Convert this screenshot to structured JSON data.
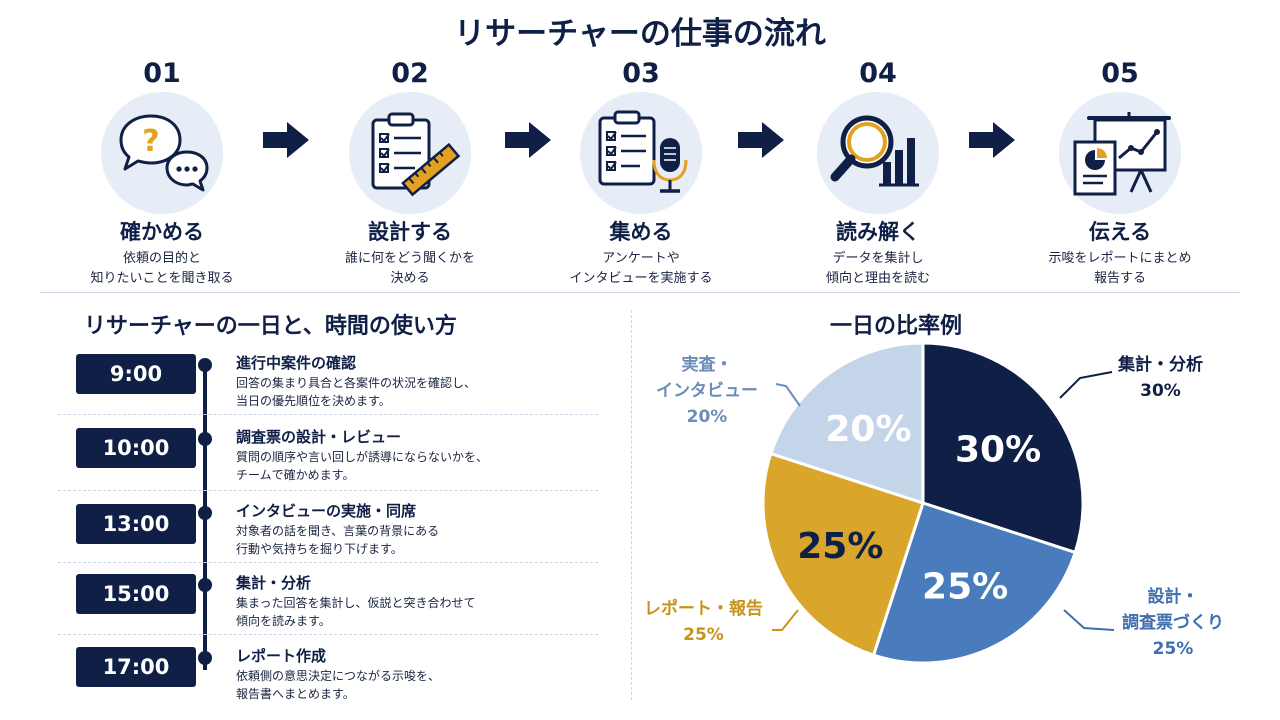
{
  "title": "リサーチャーの仕事の流れ",
  "steps": [
    {
      "num": "01",
      "name": "確かめる",
      "desc": [
        "依頼の目的と",
        "知りたいことを聞き取る"
      ],
      "icon": "speech-bubbles-question-icon"
    },
    {
      "num": "02",
      "name": "設計する",
      "desc": [
        "誰に何をどう聞くかを",
        "決める"
      ],
      "icon": "clipboard-ruler-icon"
    },
    {
      "num": "03",
      "name": "集める",
      "desc": [
        "アンケートや",
        "インタビューを実施する"
      ],
      "icon": "clipboard-microphone-icon"
    },
    {
      "num": "04",
      "name": "読み解く",
      "desc": [
        "データを集計し",
        "傾向と理由を読む"
      ],
      "icon": "magnifier-chart-icon"
    },
    {
      "num": "05",
      "name": "伝える",
      "desc": [
        "示唆をレポートにまとめ",
        "報告する"
      ],
      "icon": "presentation-board-icon"
    }
  ],
  "schedule": {
    "title": "リサーチャーの一日と、時間の使い方",
    "items": [
      {
        "time": "9:00",
        "title": "進行中案件の確認",
        "body": [
          "回答の集まり具合と各案件の状況を確認し、",
          "当日の優先順位を決めます。"
        ]
      },
      {
        "time": "10:00",
        "title": "調査票の設計・レビュー",
        "body": [
          "質問の順序や言い回しが誘導にならないかを、",
          "チームで確かめます。"
        ]
      },
      {
        "time": "13:00",
        "title": "インタビューの実施・同席",
        "body": [
          "対象者の話を聞き、言葉の背景にある",
          "行動や気持ちを掘り下げます。"
        ]
      },
      {
        "time": "15:00",
        "title": "集計・分析",
        "body": [
          "集まった回答を集計し、仮説と突き合わせて",
          "傾向を読みます。"
        ]
      },
      {
        "time": "17:00",
        "title": "レポート作成",
        "body": [
          "依頼側の意思決定につながる示唆を、",
          "報告書へまとめます。"
        ]
      }
    ]
  },
  "chart_data": {
    "type": "pie",
    "title": "一日の比率例",
    "slices": [
      {
        "label": "集計・分析",
        "label_lines": [
          "集計・分析"
        ],
        "value": 30,
        "display": "30%",
        "color": "#0f1f45",
        "label_color": "#0f1f45"
      },
      {
        "label": "設計・調査票づくり",
        "label_lines": [
          "設計・",
          "調査票づくり"
        ],
        "value": 25,
        "display": "25%",
        "color": "#4a7bbd",
        "label_color": "#3f6fb0"
      },
      {
        "label": "レポート・報告",
        "label_lines": [
          "レポート・報告"
        ],
        "value": 25,
        "display": "25%",
        "color": "#d9a52b",
        "label_color": "#c8931c"
      },
      {
        "label": "実査・インタビュー",
        "label_lines": [
          "実査・",
          "インタビュー"
        ],
        "value": 20,
        "display": "20%",
        "color": "#c4d5ea",
        "label_color": "#6b8db8"
      }
    ]
  }
}
